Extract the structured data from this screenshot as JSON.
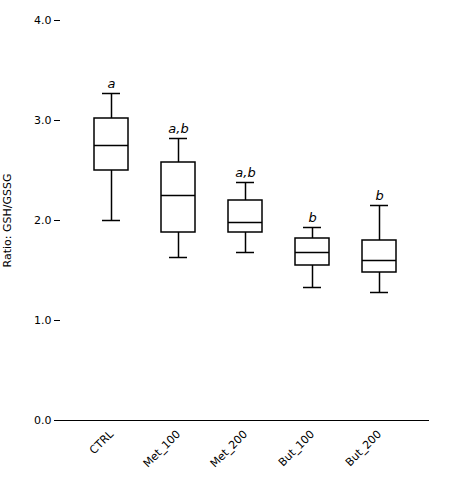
{
  "chart_data": {
    "type": "box",
    "categories": [
      "CTRL",
      "Met_100",
      "Met_200",
      "But_100",
      "But_200"
    ],
    "boxes": [
      {
        "whislo": 2.0,
        "q1": 2.5,
        "med": 2.75,
        "q3": 3.02,
        "whishi": 3.27
      },
      {
        "whislo": 1.63,
        "q1": 1.88,
        "med": 2.25,
        "q3": 2.58,
        "whishi": 2.82
      },
      {
        "whislo": 1.68,
        "q1": 1.88,
        "med": 1.98,
        "q3": 2.2,
        "whishi": 2.38
      },
      {
        "whislo": 1.33,
        "q1": 1.55,
        "med": 1.68,
        "q3": 1.82,
        "whishi": 1.93
      },
      {
        "whislo": 1.28,
        "q1": 1.48,
        "med": 1.6,
        "q3": 1.8,
        "whishi": 2.15
      }
    ],
    "annotations": [
      "a",
      "a,b",
      "a,b",
      "b",
      "b"
    ],
    "ylabel": "Ratio: GSH/GSSG",
    "ylim": [
      0,
      4
    ],
    "yticks": [
      0,
      1,
      2,
      3,
      4
    ],
    "color": "#000000",
    "grid": false
  }
}
